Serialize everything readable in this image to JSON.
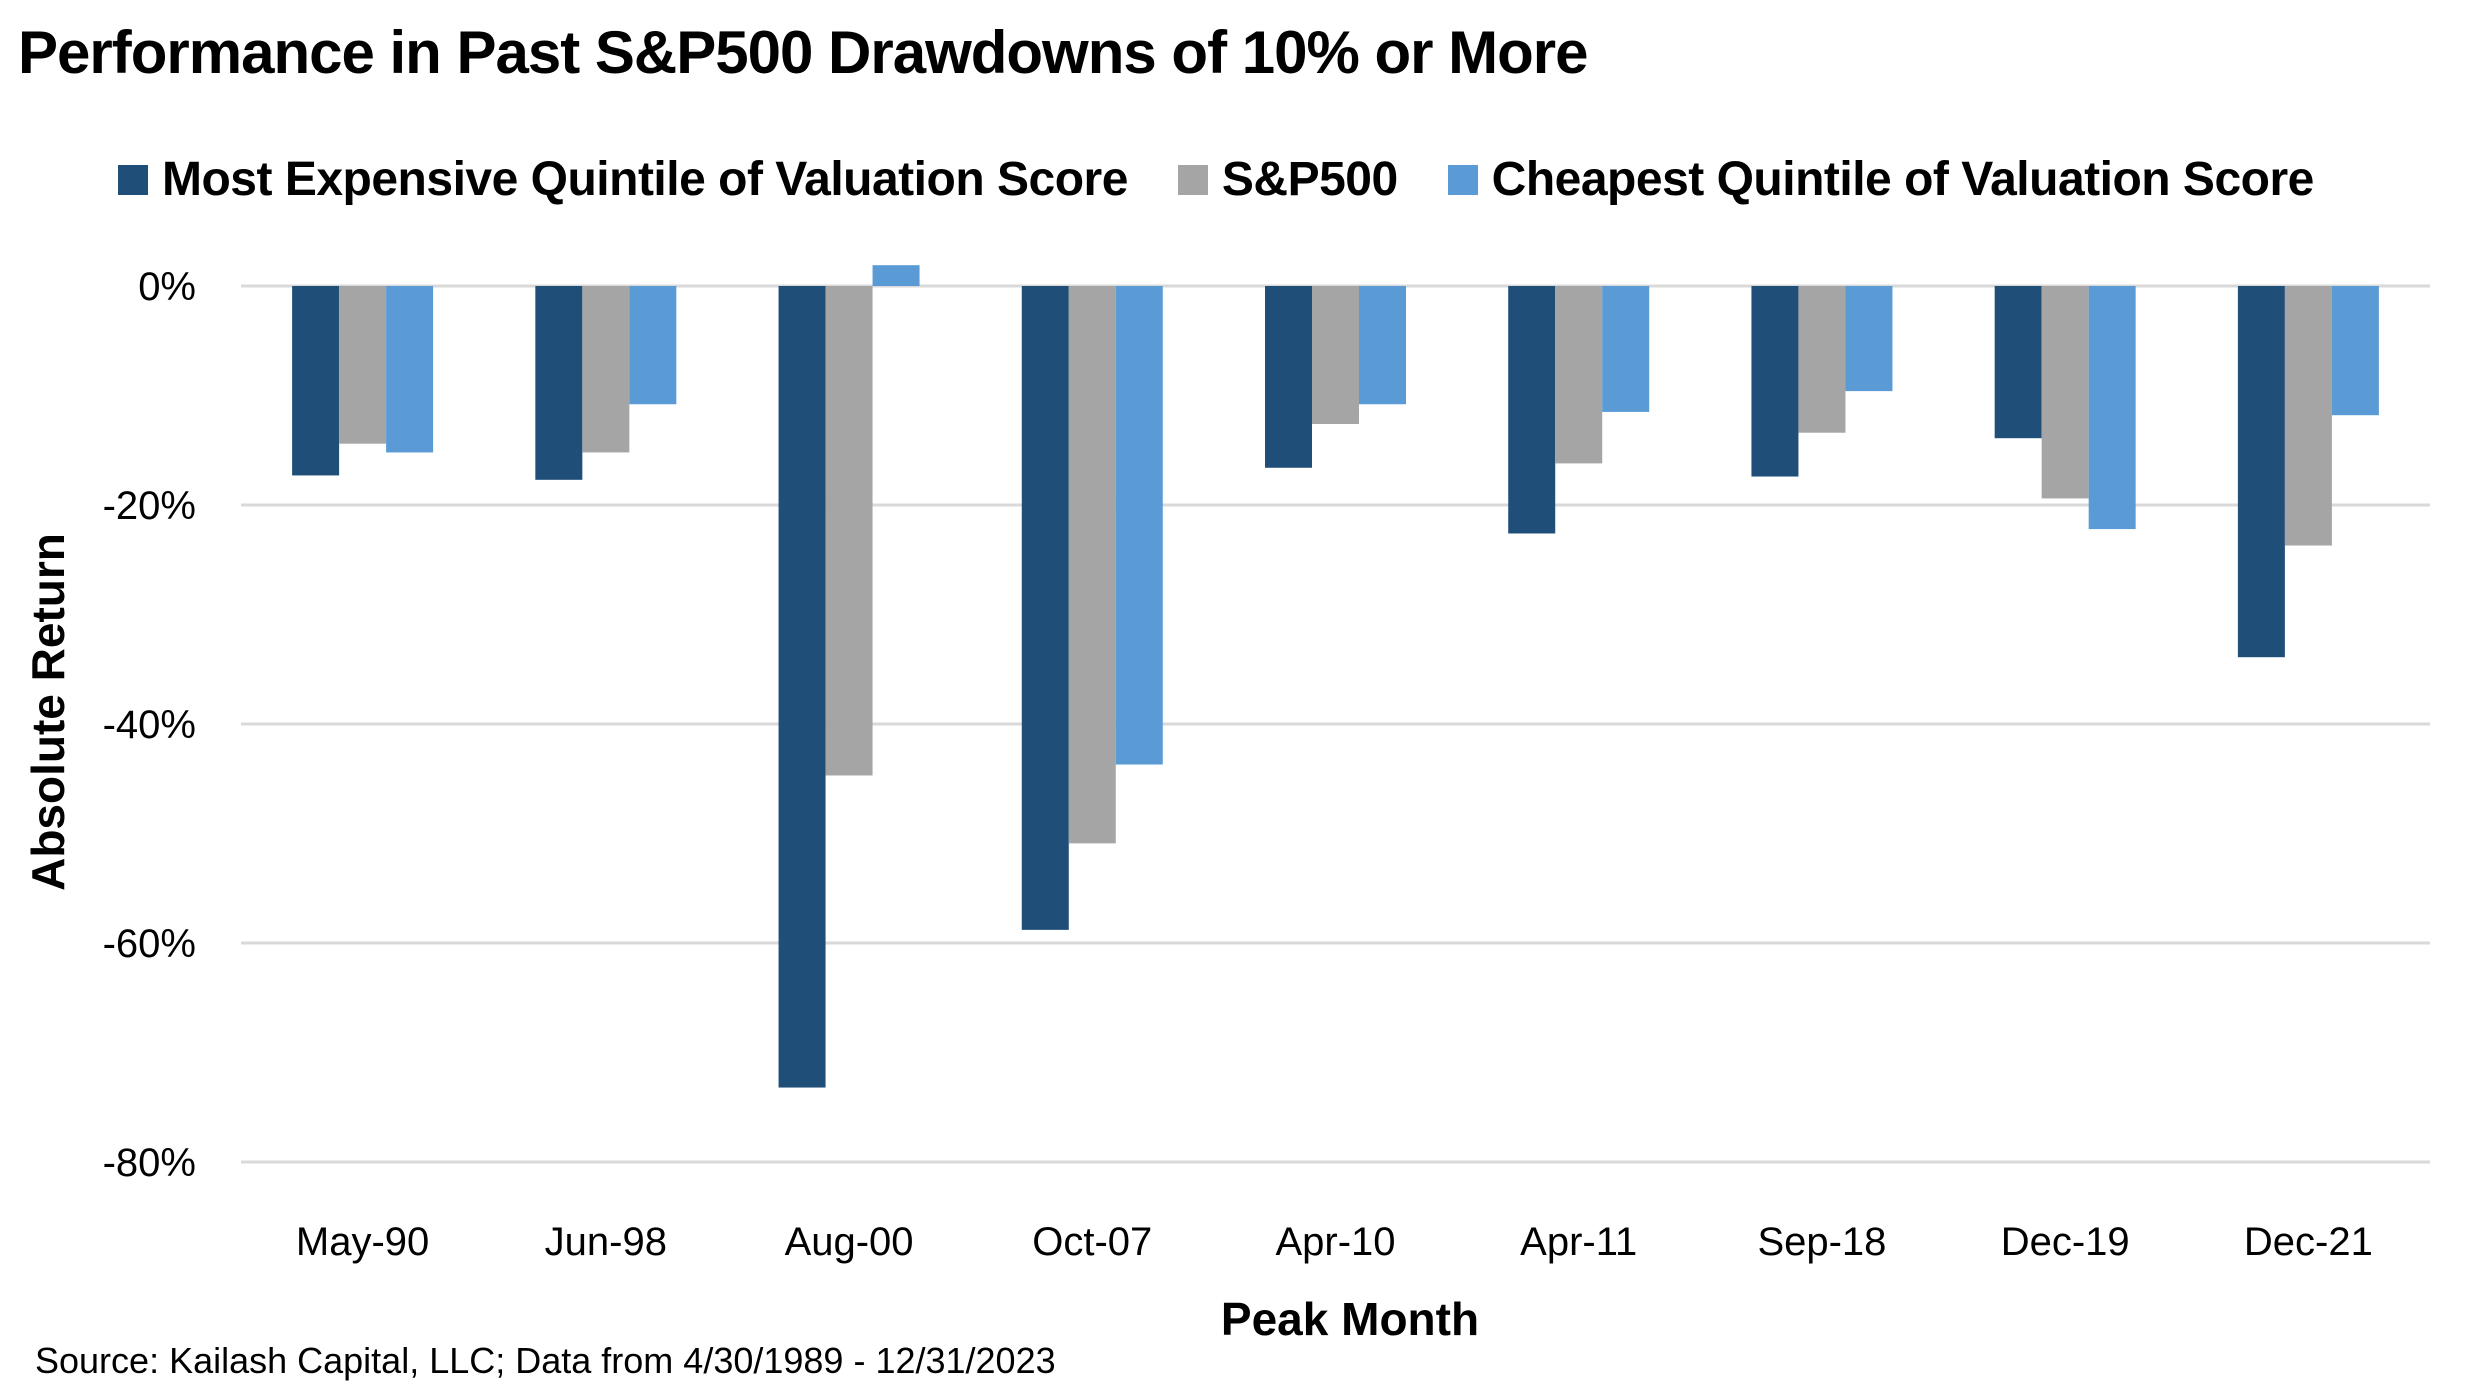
{
  "title": "Performance in Past S&P500 Drawdowns of 10% or More",
  "source": "Source: Kailash Capital, LLC; Data from 4/30/1989 - 12/31/2023",
  "chart_data": {
    "type": "bar",
    "title": "Performance in Past S&P500 Drawdowns of 10% or More",
    "xlabel": "Peak Month",
    "ylabel": "Absolute Return",
    "categories": [
      "May-90",
      "Jun-98",
      "Aug-00",
      "Oct-07",
      "Apr-10",
      "Apr-11",
      "Sep-18",
      "Dec-19",
      "Dec-21"
    ],
    "series": [
      {
        "name": "Most Expensive Quintile of Valuation Score",
        "color": "#1F4E79",
        "values": [
          -17.3,
          -17.7,
          -73.2,
          -58.8,
          -16.6,
          -22.6,
          -17.4,
          -13.9,
          -33.9
        ]
      },
      {
        "name": "S&P500",
        "color": "#A5A5A5",
        "values": [
          -14.4,
          -15.2,
          -44.7,
          -50.9,
          -12.6,
          -16.2,
          -13.4,
          -19.4,
          -23.7
        ]
      },
      {
        "name": "Cheapest Quintile of Valuation Score",
        "color": "#5B9BD5",
        "values": [
          -15.2,
          -10.8,
          1.9,
          -43.7,
          -10.8,
          -11.5,
          -9.6,
          -22.2,
          -11.8
        ]
      }
    ],
    "ylim": [
      -80,
      0
    ],
    "yticks": [
      0,
      -20,
      -40,
      -60,
      -80
    ],
    "ytick_labels": [
      "0%",
      "-20%",
      "-40%",
      "-60%",
      "-80%"
    ],
    "grid": true,
    "gridline_color": "#D9D9D9",
    "legend_position": "top"
  }
}
